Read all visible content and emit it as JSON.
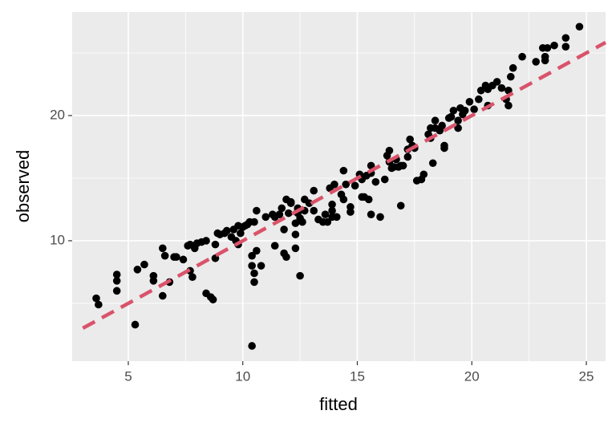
{
  "chart_data": {
    "type": "scatter",
    "x_label": "fitted",
    "y_label": "observed",
    "color": "#000000",
    "x": [
      3.6,
      3.7,
      4.5,
      4.5,
      4.5,
      5.3,
      5.4,
      5.7,
      6.1,
      6.1,
      6.5,
      6.5,
      6.6,
      6.8,
      7.0,
      7.1,
      7.4,
      7.6,
      7.7,
      7.8,
      7.7,
      7.9,
      8.0,
      8.2,
      8.4,
      8.4,
      8.6,
      8.7,
      8.8,
      8.8,
      8.9,
      9.0,
      9.2,
      9.3,
      9.5,
      9.6,
      9.7,
      9.8,
      9.8,
      9.9,
      10.0,
      10.1,
      10.2,
      10.3,
      10.4,
      10.4,
      10.5,
      10.5,
      10.5,
      10.6,
      10.6,
      10.8,
      11.0,
      11.3,
      11.4,
      11.4,
      11.6,
      11.7,
      11.8,
      11.8,
      11.9,
      11.9,
      12.0,
      12.1,
      12.1,
      12.3,
      12.3,
      12.3,
      12.4,
      12.4,
      12.4,
      12.5,
      12.5,
      12.6,
      12.7,
      12.7,
      12.9,
      13.1,
      13.1,
      13.3,
      13.5,
      13.6,
      13.7,
      13.8,
      13.9,
      13.9,
      13.9,
      14.0,
      14.1,
      14.3,
      14.4,
      14.4,
      14.5,
      14.7,
      14.7,
      14.9,
      15.1,
      15.2,
      15.2,
      15.3,
      15.4,
      15.5,
      15.6,
      15.6,
      15.6,
      15.8,
      16.0,
      16.2,
      16.3,
      16.4,
      16.4,
      16.5,
      16.6,
      16.7,
      16.8,
      16.9,
      16.9,
      17.0,
      17.2,
      17.2,
      17.3,
      17.4,
      17.5,
      17.6,
      17.8,
      17.9,
      18.1,
      18.2,
      18.2,
      18.3,
      18.4,
      18.4,
      18.6,
      18.7,
      18.8,
      18.8,
      19.0,
      19.1,
      19.2,
      19.4,
      19.4,
      19.5,
      19.6,
      19.7,
      19.9,
      20.1,
      20.3,
      20.4,
      20.6,
      20.7,
      20.7,
      20.9,
      21.1,
      21.3,
      21.5,
      21.6,
      21.6,
      21.7,
      21.8,
      22.2,
      22.8,
      23.1,
      23.3,
      23.2,
      23.2,
      23.6,
      24.1,
      24.1,
      24.7,
      10.4
    ],
    "y": [
      5.4,
      4.9,
      7.3,
      6.8,
      6.0,
      3.3,
      7.7,
      8.1,
      6.8,
      7.2,
      5.6,
      9.4,
      8.8,
      6.7,
      8.7,
      8.7,
      8.5,
      9.6,
      7.6,
      7.1,
      9.7,
      9.4,
      9.8,
      9.9,
      10.0,
      5.8,
      5.5,
      5.3,
      9.7,
      8.6,
      10.6,
      10.5,
      10.6,
      10.8,
      10.3,
      10.9,
      10.0,
      9.7,
      11.2,
      10.6,
      11.1,
      11.2,
      11.3,
      11.5,
      8.0,
      8.8,
      11.5,
      7.4,
      6.7,
      9.2,
      12.4,
      8.0,
      11.9,
      12.1,
      9.6,
      11.9,
      12.1,
      12.6,
      10.9,
      9.0,
      8.7,
      13.3,
      12.2,
      13.1,
      13.0,
      11.4,
      9.4,
      10.5,
      12.6,
      12.4,
      12.2,
      7.2,
      11.8,
      11.5,
      13.3,
      12.4,
      13.0,
      12.4,
      14.0,
      11.7,
      11.5,
      12.1,
      11.5,
      14.2,
      12.4,
      11.9,
      12.9,
      14.5,
      11.9,
      13.7,
      15.6,
      13.3,
      14.5,
      12.3,
      12.7,
      14.4,
      15.3,
      13.5,
      14.9,
      13.5,
      15.2,
      13.3,
      12.1,
      16.0,
      15.4,
      14.7,
      11.9,
      14.9,
      16.8,
      17.2,
      16.3,
      15.8,
      15.9,
      16.5,
      15.9,
      16.0,
      12.8,
      16.0,
      17.3,
      16.7,
      18.1,
      17.6,
      17.4,
      14.8,
      14.9,
      15.3,
      18.5,
      18.2,
      19.0,
      16.2,
      19.0,
      19.6,
      18.8,
      19.2,
      17.6,
      17.4,
      19.8,
      19.9,
      20.4,
      19.6,
      19.0,
      20.6,
      20.1,
      20.4,
      21.1,
      20.5,
      21.3,
      22.0,
      22.4,
      22.1,
      20.8,
      22.4,
      22.7,
      22.2,
      21.3,
      20.8,
      22.0,
      23.1,
      23.8,
      24.7,
      24.3,
      25.4,
      25.4,
      24.7,
      24.4,
      25.6,
      25.5,
      26.2,
      27.1,
      1.6
    ],
    "reference_line": {
      "slope": 1,
      "intercept": 0,
      "color": "#d9536a",
      "dashed": true
    },
    "xlim": [
      2.55,
      25.84
    ],
    "ylim": [
      0.38,
      28.27
    ],
    "xticks": [
      5,
      10,
      15,
      20,
      25
    ],
    "yticks": [
      10,
      20
    ],
    "xminor": [
      7.5,
      12.5,
      17.5,
      22.5
    ],
    "yminor": [
      5,
      15,
      25
    ],
    "grid": true,
    "panel_color": "#ebebeb"
  }
}
